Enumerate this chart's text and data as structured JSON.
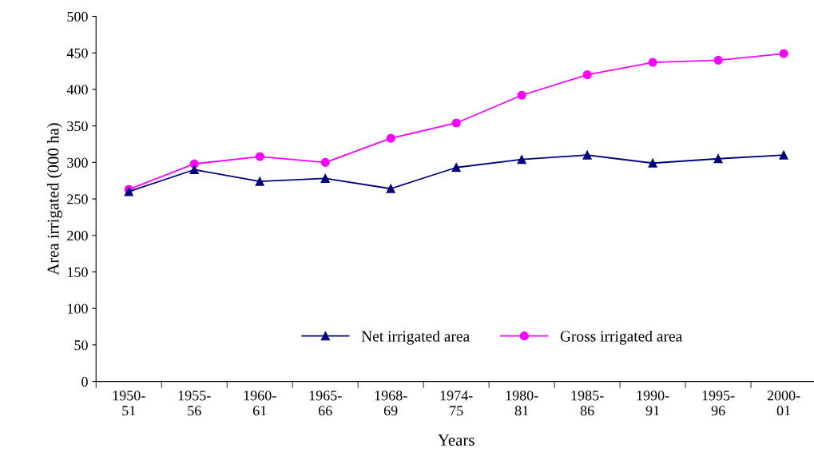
{
  "chart_data": {
    "type": "line",
    "xlabel": "Years",
    "ylabel": "Area irrigated (000 ha)",
    "categories": [
      "1950-\n51",
      "1955-\n56",
      "1960-\n61",
      "1965-\n66",
      "1968-\n69",
      "1974-\n75",
      "1980-\n81",
      "1985-\n86",
      "1990-\n91",
      "1995-\n96",
      "2000-\n01"
    ],
    "series": [
      {
        "name": "Net irrigated area",
        "color": "#000080",
        "marker": "triangle",
        "values": [
          260,
          290,
          274,
          278,
          264,
          293,
          304,
          310,
          299,
          305,
          310
        ]
      },
      {
        "name": "Gross irrigated area",
        "color": "#ff00ff",
        "marker": "circle",
        "values": [
          263,
          298,
          308,
          300,
          333,
          354,
          392,
          420,
          437,
          440,
          449
        ]
      }
    ],
    "ylim": [
      0,
      500
    ],
    "yticks": [
      0,
      50,
      100,
      150,
      200,
      250,
      300,
      350,
      400,
      450,
      500
    ],
    "grid": false,
    "legend": "bottom"
  }
}
